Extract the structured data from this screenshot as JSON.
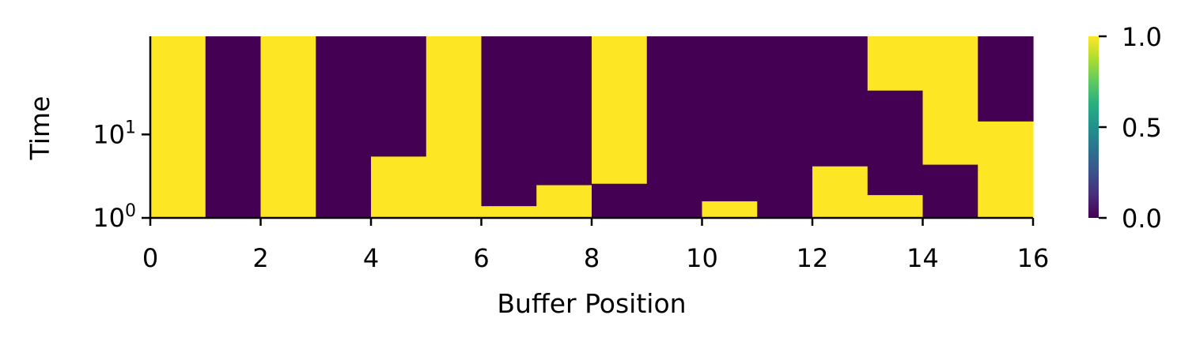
{
  "chart_data": {
    "type": "heatmap",
    "xlabel": "Buffer Position",
    "ylabel": "Time",
    "xlim": [
      0,
      16
    ],
    "x_ticks": [
      0,
      2,
      4,
      6,
      8,
      10,
      12,
      14,
      16
    ],
    "x_tick_labels": [
      "0",
      "2",
      "4",
      "6",
      "8",
      "10",
      "12",
      "14",
      "16"
    ],
    "y_scale": "log",
    "ylim": [
      1,
      150
    ],
    "y_ticks": [
      {
        "value": 1,
        "base": "10",
        "exp": "0"
      },
      {
        "value": 10,
        "base": "10",
        "exp": "1"
      }
    ],
    "colormap": "viridis",
    "colors": {
      "low": "#440154",
      "high": "#fde725"
    },
    "colorbar": {
      "range": [
        0,
        1
      ],
      "ticks": [
        0.0,
        0.5,
        1.0
      ],
      "tick_labels": [
        "0.0",
        "0.5",
        "1.0"
      ]
    },
    "columns": [
      {
        "position": 0,
        "segments": [
          {
            "from": 1,
            "to": 150,
            "value": 1
          }
        ]
      },
      {
        "position": 1,
        "segments": [
          {
            "from": 1,
            "to": 150,
            "value": 0
          }
        ]
      },
      {
        "position": 2,
        "segments": [
          {
            "from": 1,
            "to": 150,
            "value": 1
          }
        ]
      },
      {
        "position": 3,
        "segments": [
          {
            "from": 1,
            "to": 150,
            "value": 0
          }
        ]
      },
      {
        "position": 4,
        "segments": [
          {
            "from": 1,
            "to": 5.5,
            "value": 1
          },
          {
            "from": 5.5,
            "to": 150,
            "value": 0
          }
        ]
      },
      {
        "position": 5,
        "segments": [
          {
            "from": 1,
            "to": 150,
            "value": 1
          }
        ]
      },
      {
        "position": 6,
        "segments": [
          {
            "from": 1,
            "to": 1.4,
            "value": 1
          },
          {
            "from": 1.4,
            "to": 150,
            "value": 0
          }
        ]
      },
      {
        "position": 7,
        "segments": [
          {
            "from": 1,
            "to": 2.5,
            "value": 1
          },
          {
            "from": 2.5,
            "to": 150,
            "value": 0
          }
        ]
      },
      {
        "position": 8,
        "segments": [
          {
            "from": 1,
            "to": 2.6,
            "value": 0
          },
          {
            "from": 2.6,
            "to": 150,
            "value": 1
          }
        ]
      },
      {
        "position": 9,
        "segments": [
          {
            "from": 1,
            "to": 150,
            "value": 0
          }
        ]
      },
      {
        "position": 10,
        "segments": [
          {
            "from": 1,
            "to": 1.6,
            "value": 1
          },
          {
            "from": 1.6,
            "to": 150,
            "value": 0
          }
        ]
      },
      {
        "position": 11,
        "segments": [
          {
            "from": 1,
            "to": 150,
            "value": 0
          }
        ]
      },
      {
        "position": 12,
        "segments": [
          {
            "from": 1,
            "to": 4.2,
            "value": 1
          },
          {
            "from": 4.2,
            "to": 150,
            "value": 0
          }
        ]
      },
      {
        "position": 13,
        "segments": [
          {
            "from": 1,
            "to": 1.9,
            "value": 1
          },
          {
            "from": 1.9,
            "to": 34,
            "value": 0
          },
          {
            "from": 34,
            "to": 150,
            "value": 1
          }
        ]
      },
      {
        "position": 14,
        "segments": [
          {
            "from": 1,
            "to": 4.4,
            "value": 0
          },
          {
            "from": 4.4,
            "to": 150,
            "value": 1
          }
        ]
      },
      {
        "position": 15,
        "segments": [
          {
            "from": 1,
            "to": 14.5,
            "value": 1
          },
          {
            "from": 14.5,
            "to": 150,
            "value": 0
          }
        ]
      }
    ]
  }
}
